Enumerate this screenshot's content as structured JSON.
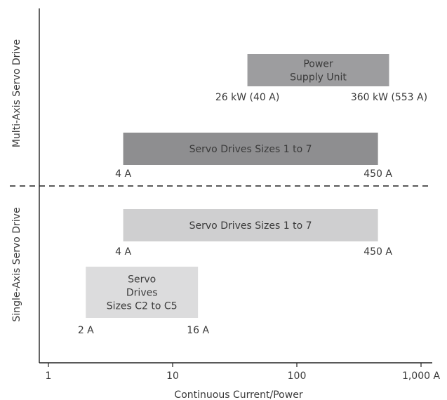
{
  "chart_data": {
    "type": "bar",
    "orientation": "horizontal-range",
    "x_scale": "log",
    "xlabel": "Continuous Current/Power",
    "xlim": [
      0.85,
      1050
    ],
    "x_ticks": [
      {
        "value": 1,
        "label": "1"
      },
      {
        "value": 10,
        "label": "10"
      },
      {
        "value": 100,
        "label": "100"
      },
      {
        "value": 1000,
        "label": "1,000 A"
      }
    ],
    "groups": [
      {
        "name": "Multi-Axis Servo Drive"
      },
      {
        "name": "Single-Axis Servo Drive"
      }
    ],
    "bars": [
      {
        "group": "Multi-Axis Servo Drive",
        "lines": [
          "Power",
          "Supply Unit"
        ],
        "start": 40,
        "end": 553,
        "start_label": "26 kW (40 A)",
        "end_label": "360 kW (553 A)",
        "color": "#9d9d9f"
      },
      {
        "group": "Multi-Axis Servo Drive",
        "lines": [
          "Servo Drives Sizes 1 to 7"
        ],
        "start": 4,
        "end": 450,
        "start_label": "4 A",
        "end_label": "450 A",
        "color": "#8e8e90"
      },
      {
        "group": "Single-Axis Servo Drive",
        "lines": [
          "Servo Drives Sizes 1 to 7"
        ],
        "start": 4,
        "end": 450,
        "start_label": "4 A",
        "end_label": "450 A",
        "color": "#cfcfd0"
      },
      {
        "group": "Single-Axis Servo Drive",
        "lines": [
          "Servo",
          "Drives",
          "Sizes C2 to C5"
        ],
        "start": 2,
        "end": 16,
        "start_label": "2 A",
        "end_label": "16 A",
        "color": "#dcdcdd"
      }
    ],
    "colors": {
      "axis": "#222222",
      "divider": "#222222",
      "text": "#3a3a3a"
    }
  }
}
